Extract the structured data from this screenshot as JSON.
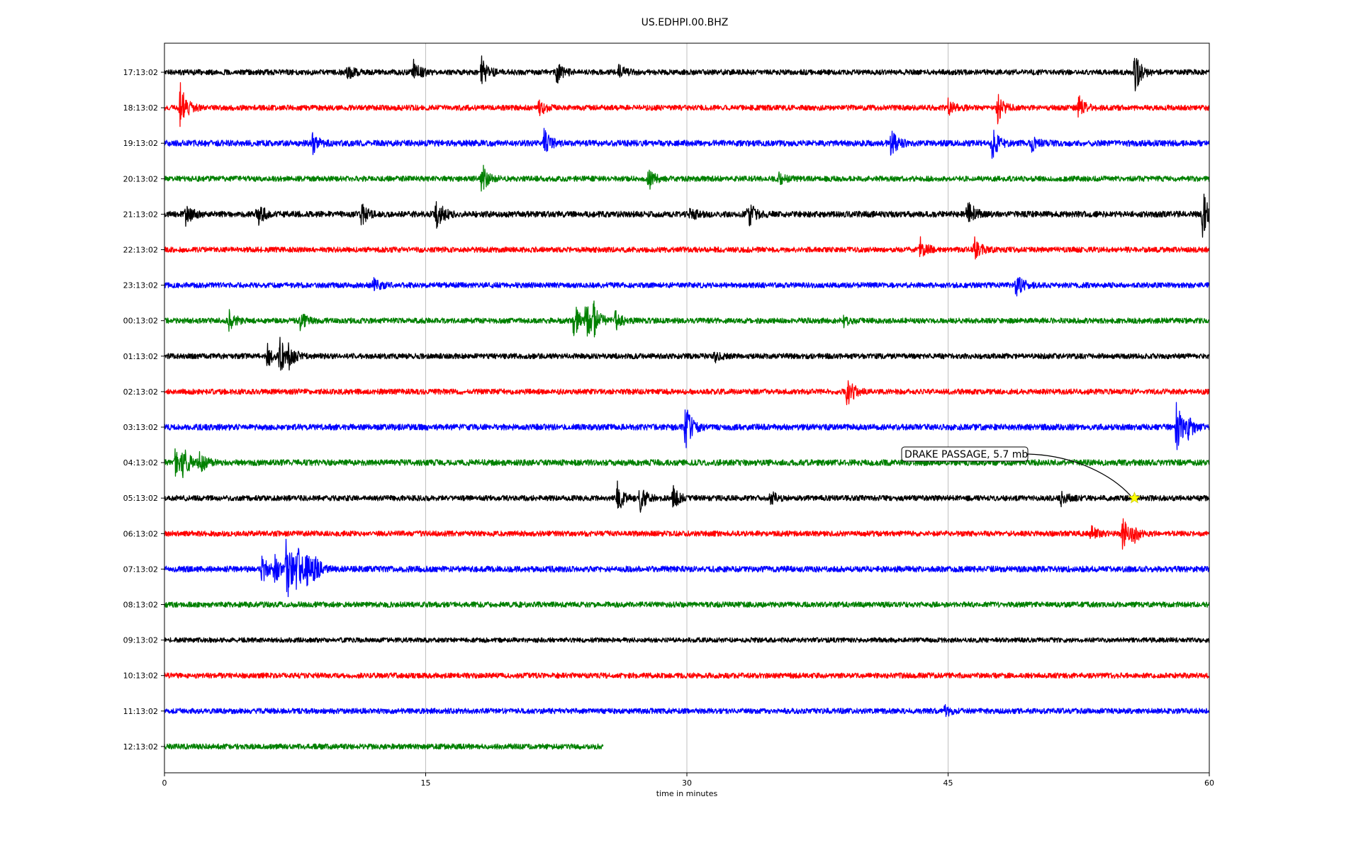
{
  "chart_data": {
    "type": "line",
    "title": "US.EDHPI.00.BHZ",
    "xlabel": "time in minutes",
    "ylabel": "",
    "xlim": [
      0,
      60
    ],
    "x_ticks": [
      "0",
      "15",
      "30",
      "45",
      "60"
    ],
    "x_tick_values": [
      0,
      15,
      30,
      45,
      60
    ],
    "grid": "vertical",
    "colors": [
      "#000000",
      "#ff0000",
      "#0000ff",
      "#008000"
    ],
    "series": [
      {
        "label": "17:13:02",
        "end": 60,
        "color": "#000000",
        "noise": 0.45,
        "events": [
          {
            "t": 10.5,
            "a": 0.6
          },
          {
            "t": 14.3,
            "a": 0.9
          },
          {
            "t": 18.2,
            "a": 1.1
          },
          {
            "t": 22.5,
            "a": 0.9
          },
          {
            "t": 26.1,
            "a": 0.5
          },
          {
            "t": 55.7,
            "a": 1.6
          }
        ]
      },
      {
        "label": "18:13:02",
        "end": 60,
        "color": "#ff0000",
        "noise": 0.45,
        "events": [
          {
            "t": 0.9,
            "a": 1.8
          },
          {
            "t": 21.5,
            "a": 0.6
          },
          {
            "t": 47.8,
            "a": 1.2
          },
          {
            "t": 52.5,
            "a": 0.9
          },
          {
            "t": 45.0,
            "a": 0.6
          }
        ]
      },
      {
        "label": "19:13:02",
        "end": 60,
        "color": "#0000ff",
        "noise": 0.5,
        "events": [
          {
            "t": 8.5,
            "a": 0.7
          },
          {
            "t": 21.8,
            "a": 1.0
          },
          {
            "t": 41.7,
            "a": 1.1
          },
          {
            "t": 47.5,
            "a": 1.2
          },
          {
            "t": 49.8,
            "a": 0.5
          }
        ]
      },
      {
        "label": "20:13:02",
        "end": 60,
        "color": "#008000",
        "noise": 0.45,
        "events": [
          {
            "t": 18.2,
            "a": 1.2
          },
          {
            "t": 27.8,
            "a": 0.9
          },
          {
            "t": 35.3,
            "a": 0.4
          }
        ]
      },
      {
        "label": "21:13:02",
        "end": 60,
        "color": "#000000",
        "noise": 0.5,
        "events": [
          {
            "t": 1.2,
            "a": 0.8
          },
          {
            "t": 5.3,
            "a": 1.1
          },
          {
            "t": 11.3,
            "a": 0.8
          },
          {
            "t": 15.6,
            "a": 1.3
          },
          {
            "t": 30.2,
            "a": 0.5
          },
          {
            "t": 33.5,
            "a": 1.1
          },
          {
            "t": 46.1,
            "a": 1.3
          },
          {
            "t": 59.6,
            "a": 1.8
          }
        ]
      },
      {
        "label": "22:13:02",
        "end": 60,
        "color": "#ff0000",
        "noise": 0.45,
        "events": [
          {
            "t": 43.4,
            "a": 1.1
          },
          {
            "t": 46.5,
            "a": 0.9
          }
        ]
      },
      {
        "label": "23:13:02",
        "end": 60,
        "color": "#0000ff",
        "noise": 0.45,
        "events": [
          {
            "t": 12.0,
            "a": 0.5
          },
          {
            "t": 48.9,
            "a": 1.0
          }
        ]
      },
      {
        "label": "00:13:02",
        "end": 60,
        "color": "#008000",
        "noise": 0.45,
        "events": [
          {
            "t": 3.7,
            "a": 0.8
          },
          {
            "t": 7.8,
            "a": 0.6
          },
          {
            "t": 23.5,
            "a": 1.6
          },
          {
            "t": 24.2,
            "a": 1.4
          },
          {
            "t": 24.6,
            "a": 1.2
          },
          {
            "t": 25.9,
            "a": 0.7
          },
          {
            "t": 39.0,
            "a": 0.4
          }
        ]
      },
      {
        "label": "01:13:02",
        "end": 60,
        "color": "#000000",
        "noise": 0.45,
        "events": [
          {
            "t": 5.9,
            "a": 0.9
          },
          {
            "t": 6.6,
            "a": 1.3
          },
          {
            "t": 7.1,
            "a": 0.9
          },
          {
            "t": 31.5,
            "a": 0.5
          }
        ]
      },
      {
        "label": "02:13:02",
        "end": 60,
        "color": "#ff0000",
        "noise": 0.45,
        "events": [
          {
            "t": 39.2,
            "a": 1.4
          }
        ]
      },
      {
        "label": "03:13:02",
        "end": 60,
        "color": "#0000ff",
        "noise": 0.5,
        "events": [
          {
            "t": 29.9,
            "a": 1.8
          },
          {
            "t": 58.1,
            "a": 1.9
          },
          {
            "t": 58.8,
            "a": 0.7
          }
        ]
      },
      {
        "label": "04:13:02",
        "end": 60,
        "color": "#008000",
        "noise": 0.5,
        "events": [
          {
            "t": 0.6,
            "a": 0.9
          },
          {
            "t": 1.0,
            "a": 1.3
          },
          {
            "t": 2.0,
            "a": 0.9
          }
        ]
      },
      {
        "label": "05:13:02",
        "end": 60,
        "color": "#000000",
        "noise": 0.45,
        "events": [
          {
            "t": 26.0,
            "a": 1.2
          },
          {
            "t": 27.3,
            "a": 1.0
          },
          {
            "t": 29.2,
            "a": 0.9
          },
          {
            "t": 34.8,
            "a": 0.5
          },
          {
            "t": 51.5,
            "a": 0.6
          }
        ]
      },
      {
        "label": "06:13:02",
        "end": 60,
        "color": "#ff0000",
        "noise": 0.45,
        "events": [
          {
            "t": 53.2,
            "a": 0.6
          },
          {
            "t": 55.0,
            "a": 1.2
          },
          {
            "t": 55.6,
            "a": 0.7
          }
        ]
      },
      {
        "label": "07:13:02",
        "end": 60,
        "color": "#0000ff",
        "noise": 0.5,
        "events": [
          {
            "t": 5.6,
            "a": 1.0
          },
          {
            "t": 6.3,
            "a": 1.0
          },
          {
            "t": 7.0,
            "a": 2.6
          },
          {
            "t": 7.6,
            "a": 1.6
          },
          {
            "t": 8.1,
            "a": 1.5
          },
          {
            "t": 8.6,
            "a": 0.8
          }
        ]
      },
      {
        "label": "08:13:02",
        "end": 60,
        "color": "#008000",
        "noise": 0.45,
        "events": []
      },
      {
        "label": "09:13:02",
        "end": 60,
        "color": "#000000",
        "noise": 0.4,
        "events": []
      },
      {
        "label": "10:13:02",
        "end": 60,
        "color": "#ff0000",
        "noise": 0.45,
        "events": []
      },
      {
        "label": "11:13:02",
        "end": 60,
        "color": "#0000ff",
        "noise": 0.45,
        "events": [
          {
            "t": 44.8,
            "a": 0.4
          }
        ]
      },
      {
        "label": "12:13:02",
        "end": 25.2,
        "color": "#008000",
        "noise": 0.45,
        "events": []
      }
    ],
    "annotation": {
      "text": "DRAKE PASSAGE, 5.7 mb",
      "target_row": 12,
      "target_x": 55.7,
      "marker": "star",
      "marker_color": "#ffff00"
    }
  }
}
